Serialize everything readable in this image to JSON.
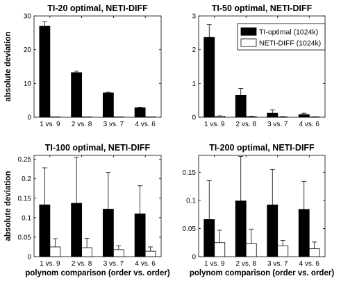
{
  "chart_data": [
    {
      "type": "bar",
      "title": "TI-20 optimal, NETI-DIFF",
      "xlabel": "",
      "ylabel": "absolute deviation",
      "ylim": [
        0,
        30
      ],
      "yticks": [
        "0",
        "10",
        "20",
        "30"
      ],
      "categories": [
        "1 vs. 9",
        "2 vs. 8",
        "3 vs. 7",
        "4 vs. 6"
      ],
      "series": [
        {
          "name": "TI-optimal (1024k)",
          "color": "#000000",
          "values": [
            27.0,
            13.2,
            7.2,
            2.8
          ],
          "errors": [
            1.3,
            0.5,
            0.2,
            0.15
          ]
        },
        {
          "name": "NETI-DIFF (1024k)",
          "color": "#ffffff",
          "values": [
            0.1,
            0.1,
            0.1,
            0.1
          ],
          "errors": [
            0,
            0,
            0,
            0
          ]
        }
      ]
    },
    {
      "type": "bar",
      "title": "TI-50 optimal, NETI-DIFF",
      "xlabel": "",
      "ylabel": "",
      "ylim": [
        0,
        3
      ],
      "yticks": [
        "0",
        "1",
        "2",
        "3"
      ],
      "categories": [
        "1 vs. 9",
        "2 vs. 8",
        "3 vs. 7",
        "4 vs. 6"
      ],
      "legend": {
        "placement": "top-right"
      },
      "series": [
        {
          "name": "TI-optimal (1024k)",
          "color": "#000000",
          "values": [
            2.37,
            0.65,
            0.12,
            0.08
          ],
          "errors": [
            0.37,
            0.2,
            0.1,
            0.04
          ]
        },
        {
          "name": "NETI-DIFF (1024k)",
          "color": "#ffffff",
          "values": [
            0.03,
            0.02,
            0.01,
            0.01
          ],
          "errors": [
            0.01,
            0.01,
            0.01,
            0.005
          ]
        }
      ]
    },
    {
      "type": "bar",
      "title": "TI-100 optimal, NETI-DIFF",
      "xlabel": "polynom comparison (order vs. order)",
      "ylabel": "absolute deviation",
      "ylim": [
        0,
        0.26
      ],
      "yticks": [
        "0",
        "0.05",
        "0.1",
        "0.15",
        "0.2",
        "0.25"
      ],
      "categories": [
        "1 vs. 9",
        "2 vs. 8",
        "3 vs. 7",
        "4 vs. 6"
      ],
      "series": [
        {
          "name": "TI-optimal (1024k)",
          "color": "#000000",
          "values": [
            0.133,
            0.137,
            0.122,
            0.11
          ],
          "errors": [
            0.095,
            0.118,
            0.094,
            0.072
          ]
        },
        {
          "name": "NETI-DIFF (1024k)",
          "color": "#ffffff",
          "values": [
            0.025,
            0.023,
            0.018,
            0.014
          ],
          "errors": [
            0.021,
            0.024,
            0.01,
            0.011
          ]
        }
      ]
    },
    {
      "type": "bar",
      "title": "TI-200 optimal, NETI-DIFF",
      "xlabel": "polynom comparison (order vs. order)",
      "ylabel": "",
      "ylim": [
        0,
        0.18
      ],
      "yticks": [
        "0",
        "0.05",
        "0.1",
        "0.15"
      ],
      "categories": [
        "1 vs. 9",
        "2 vs. 8",
        "3 vs. 7",
        "4 vs. 6"
      ],
      "series": [
        {
          "name": "TI-optimal (1024k)",
          "color": "#000000",
          "values": [
            0.066,
            0.099,
            0.092,
            0.084
          ],
          "errors": [
            0.069,
            0.079,
            0.063,
            0.05
          ]
        },
        {
          "name": "NETI-DIFF (1024k)",
          "color": "#ffffff",
          "values": [
            0.025,
            0.023,
            0.019,
            0.014
          ],
          "errors": [
            0.022,
            0.026,
            0.01,
            0.012
          ]
        }
      ]
    }
  ]
}
